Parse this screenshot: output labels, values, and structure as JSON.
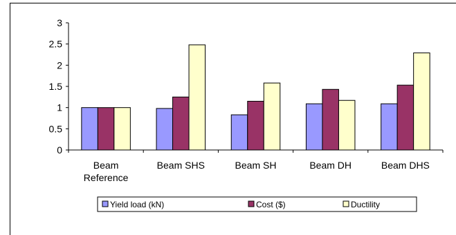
{
  "chart_data": {
    "type": "bar",
    "title": "",
    "xlabel": "",
    "ylabel": "",
    "categories": [
      [
        "Beam",
        "Reference"
      ],
      [
        "Beam SHS"
      ],
      [
        "Beam SH"
      ],
      [
        "Beam DH"
      ],
      [
        "Beam DHS"
      ]
    ],
    "series": [
      {
        "name": "Yield load (kN)",
        "color": "#9999ff",
        "values": [
          1.0,
          0.98,
          0.83,
          1.09,
          1.09
        ]
      },
      {
        "name": "Cost ($)",
        "color": "#993366",
        "values": [
          1.0,
          1.25,
          1.15,
          1.43,
          1.53
        ]
      },
      {
        "name": "Ductility",
        "color": "#ffffcc",
        "values": [
          1.0,
          2.48,
          1.58,
          1.17,
          2.29
        ]
      }
    ],
    "ylim": [
      0,
      3
    ],
    "yticks": [
      "0",
      "0.5",
      "1",
      "1.5",
      "2",
      "2.5",
      "3"
    ],
    "grid": false,
    "legend": "bottom"
  }
}
